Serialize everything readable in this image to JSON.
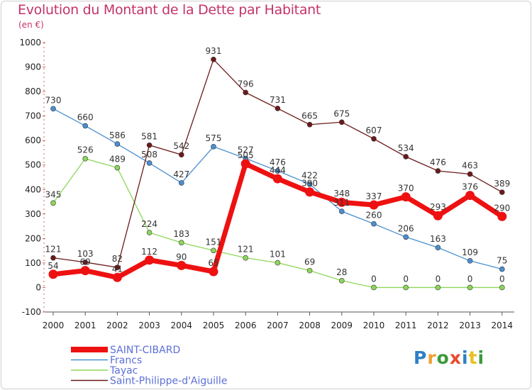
{
  "title": "Evolution du Montant de la Dette par Habitant",
  "subtitle": "(en €)",
  "logo": {
    "text": "Proxiti",
    "colors": [
      "#2e7fc7",
      "#f0a030",
      "#3a9a3a",
      "#e84a2a",
      "#2e7fc7",
      "#e8c020",
      "#3a9a3a"
    ]
  },
  "chart_data": {
    "type": "line",
    "x": [
      "2000",
      "2001",
      "2002",
      "2003",
      "2004",
      "2005",
      "2006",
      "2007",
      "2008",
      "2009",
      "2010",
      "2011",
      "2012",
      "2013",
      "2014"
    ],
    "ylim": [
      -100,
      1000
    ],
    "yticks": [
      -100,
      0,
      100,
      200,
      300,
      400,
      500,
      600,
      700,
      800,
      900,
      1000
    ],
    "grid": false,
    "legend_position": "bottom-left",
    "series": [
      {
        "name": "SAINT-CIBARD",
        "color": "#ee1111",
        "emphasis": true,
        "values": [
          54,
          69,
          41,
          112,
          90,
          65,
          505,
          444,
          390,
          348,
          337,
          370,
          293,
          376,
          290
        ]
      },
      {
        "name": "Francs",
        "color": "#4b8fd0",
        "values": [
          730,
          660,
          586,
          508,
          427,
          575,
          527,
          476,
          422,
          311,
          260,
          206,
          163,
          109,
          75
        ]
      },
      {
        "name": "Tayac",
        "color": "#8ed65a",
        "values": [
          345,
          526,
          489,
          224,
          183,
          151,
          121,
          101,
          69,
          28,
          0,
          0,
          0,
          0,
          0
        ]
      },
      {
        "name": "Saint-Philippe-d'Aiguille",
        "color": "#6b1a1a",
        "values": [
          121,
          103,
          82,
          581,
          542,
          931,
          796,
          731,
          665,
          675,
          607,
          534,
          476,
          463,
          389
        ]
      }
    ]
  }
}
